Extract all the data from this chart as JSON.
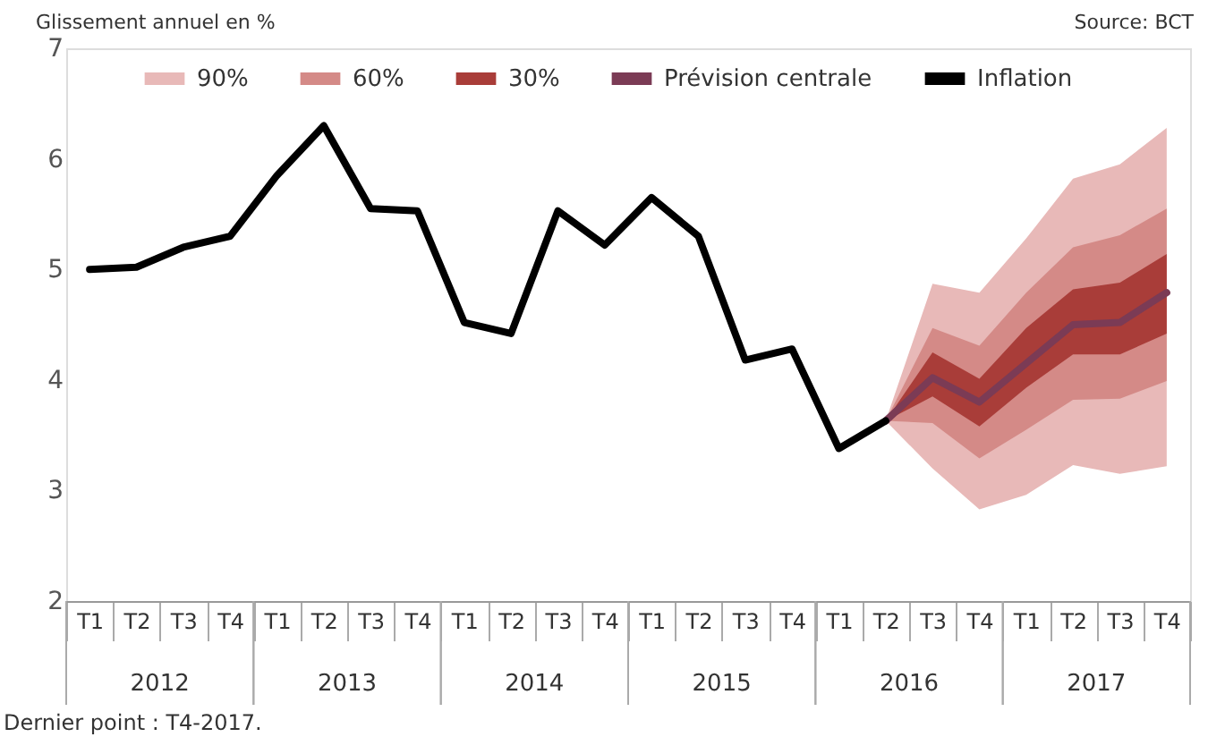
{
  "chart_data": {
    "type": "line",
    "ylabel": "Glissement annuel en %",
    "categories": [
      "T1",
      "T2",
      "T3",
      "T4",
      "T1",
      "T2",
      "T3",
      "T4",
      "T1",
      "T2",
      "T3",
      "T4",
      "T1",
      "T2",
      "T3",
      "T4",
      "T1",
      "T2",
      "T3",
      "T4",
      "T1",
      "T2",
      "T3",
      "T4"
    ],
    "ylim": [
      2,
      7
    ],
    "yticks": [
      2,
      3,
      4,
      5,
      6,
      7
    ],
    "grid": false,
    "legend": "top",
    "line_style": "solid",
    "marker": "none",
    "series": [
      {
        "name": "90%",
        "type": "area",
        "color": "#e8b9b8",
        "values": [
          null,
          null,
          null,
          null,
          null,
          null,
          null,
          null,
          null,
          null,
          null,
          null,
          null,
          null,
          null,
          null,
          null,
          null,
          null,
          null,
          null,
          null,
          null,
          null
        ],
        "lower": [
          null,
          null,
          null,
          null,
          null,
          null,
          null,
          null,
          null,
          null,
          null,
          null,
          null,
          null,
          null,
          null,
          null,
          3.63,
          3.2,
          2.83,
          2.96,
          3.23,
          3.15,
          3.22
        ],
        "upper": [
          null,
          null,
          null,
          null,
          null,
          null,
          null,
          null,
          null,
          null,
          null,
          null,
          null,
          null,
          null,
          null,
          null,
          3.63,
          4.87,
          4.79,
          5.28,
          5.82,
          5.95,
          6.28
        ]
      },
      {
        "name": "60%",
        "type": "area",
        "color": "#d48a87",
        "values": [
          null,
          null,
          null,
          null,
          null,
          null,
          null,
          null,
          null,
          null,
          null,
          null,
          null,
          null,
          null,
          null,
          null,
          null,
          null,
          null,
          null,
          null,
          null,
          null
        ],
        "lower": [
          null,
          null,
          null,
          null,
          null,
          null,
          null,
          null,
          null,
          null,
          null,
          null,
          null,
          null,
          null,
          null,
          null,
          3.63,
          3.61,
          3.29,
          3.55,
          3.82,
          3.83,
          3.99
        ],
        "upper": [
          null,
          null,
          null,
          null,
          null,
          null,
          null,
          null,
          null,
          null,
          null,
          null,
          null,
          null,
          null,
          null,
          null,
          3.63,
          4.47,
          4.31,
          4.79,
          5.2,
          5.31,
          5.55
        ]
      },
      {
        "name": "30%",
        "type": "area",
        "color": "#a93d39",
        "values": [
          null,
          null,
          null,
          null,
          null,
          null,
          null,
          null,
          null,
          null,
          null,
          null,
          null,
          null,
          null,
          null,
          null,
          null,
          null,
          null,
          null,
          null,
          null,
          null
        ],
        "lower": [
          null,
          null,
          null,
          null,
          null,
          null,
          null,
          null,
          null,
          null,
          null,
          null,
          null,
          null,
          null,
          null,
          null,
          3.63,
          3.85,
          3.58,
          3.93,
          4.23,
          4.23,
          4.42
        ],
        "upper": [
          null,
          null,
          null,
          null,
          null,
          null,
          null,
          null,
          null,
          null,
          null,
          null,
          null,
          null,
          null,
          null,
          null,
          3.63,
          4.25,
          4.01,
          4.47,
          4.82,
          4.88,
          5.14
        ]
      },
      {
        "name": "Prévision centrale",
        "color": "#7b3b55",
        "values": [
          null,
          null,
          null,
          null,
          null,
          null,
          null,
          null,
          null,
          null,
          null,
          null,
          null,
          null,
          null,
          null,
          null,
          3.63,
          4.02,
          3.8,
          4.15,
          4.5,
          4.52,
          4.79
        ]
      },
      {
        "name": "Inflation",
        "color": "#000000",
        "values": [
          5.0,
          5.02,
          5.2,
          5.3,
          5.85,
          6.3,
          5.55,
          5.53,
          4.52,
          4.42,
          5.53,
          5.22,
          5.65,
          5.3,
          4.18,
          4.28,
          3.38,
          3.63,
          null,
          null,
          null,
          null,
          null,
          null
        ]
      }
    ],
    "annotations": [
      "Source:  BCT",
      "Dernier point : T4-2017.",
      "2012",
      "2013",
      "2014",
      "2015",
      "2016",
      "2017"
    ]
  }
}
